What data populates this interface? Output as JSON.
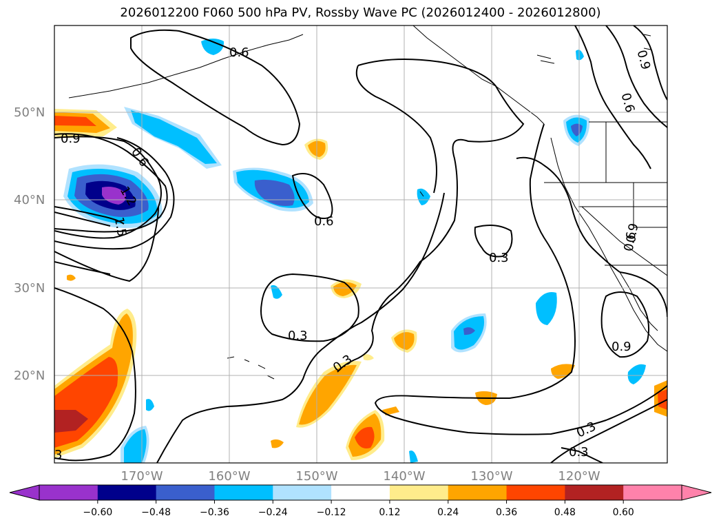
{
  "title": "2026012200 F060 500 hPa PV, Rossby Wave PC (2026012400 - 2026012800)",
  "latitude_labels": [
    "50°N",
    "40°N",
    "30°N",
    "20°N"
  ],
  "longitude_labels": [
    "170°W",
    "160°W",
    "150°W",
    "140°W",
    "130°W",
    "120°W"
  ],
  "contour_labels": [
    "0.6",
    "0.9",
    "0.6",
    "1.5",
    "1.2",
    "0.6",
    "0.3",
    "0.3",
    "0.3",
    "0.6",
    "0.9",
    "0.9",
    "0.3",
    "0.3",
    "0.6",
    "0.9",
    "3"
  ],
  "colorbar": {
    "ticks": [
      "−0.60",
      "−0.48",
      "−0.36",
      "−0.24",
      "−0.12",
      "0.12",
      "0.24",
      "0.36",
      "0.48",
      "0.60"
    ],
    "colors": [
      "#9932cc",
      "#00008b",
      "#3a5fcd",
      "#00bfff",
      "#b0e2ff",
      "#ffffff",
      "#ffec8b",
      "#ffa500",
      "#ff4500",
      "#b22222",
      "#ff82ab"
    ]
  }
}
